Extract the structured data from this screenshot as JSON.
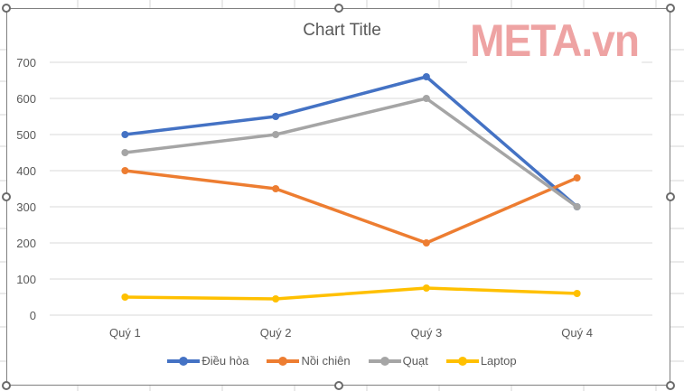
{
  "chart": {
    "title": "Chart Title",
    "watermark": "META.vn"
  },
  "chart_data": {
    "type": "line",
    "title": "Chart Title",
    "xlabel": "",
    "ylabel": "",
    "categories": [
      "Quý 1",
      "Quý 2",
      "Quý 3",
      "Quý 4"
    ],
    "ylim": [
      0,
      700
    ],
    "yticks": [
      0,
      100,
      200,
      300,
      400,
      500,
      600,
      700
    ],
    "grid": true,
    "legend_position": "bottom",
    "series": [
      {
        "name": "Điều hòa",
        "color": "#4472C4",
        "values": [
          500,
          550,
          660,
          300
        ]
      },
      {
        "name": "Nồi chiên",
        "color": "#ED7D31",
        "values": [
          400,
          350,
          200,
          380
        ]
      },
      {
        "name": "Quạt",
        "color": "#A5A5A5",
        "values": [
          450,
          500,
          600,
          300
        ]
      },
      {
        "name": "Laptop",
        "color": "#FFC000",
        "values": [
          50,
          45,
          75,
          60
        ]
      }
    ]
  },
  "legend": {
    "items": [
      {
        "label": "Điều hòa",
        "color": "#4472C4"
      },
      {
        "label": "Nồi chiên",
        "color": "#ED7D31"
      },
      {
        "label": "Quạt",
        "color": "#A5A5A5"
      },
      {
        "label": "Laptop",
        "color": "#FFC000"
      }
    ]
  }
}
